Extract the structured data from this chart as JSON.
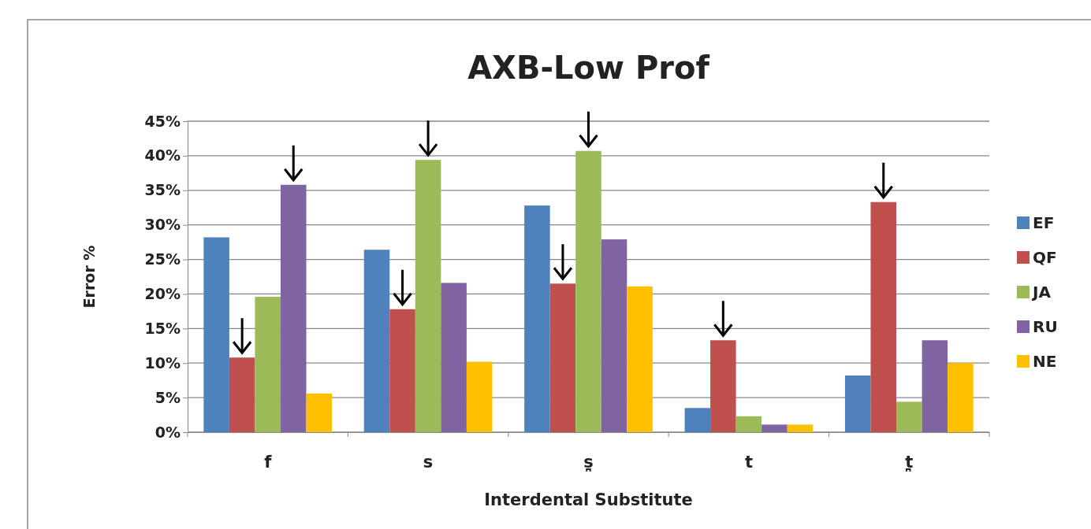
{
  "chart_data": {
    "type": "bar",
    "title": "AXB-Low Prof",
    "xlabel": "Interdental Substitute",
    "ylabel": "Error %",
    "categories": [
      "f",
      "s",
      "s̪",
      "t",
      "t̪"
    ],
    "series": [
      {
        "name": "EF",
        "color": "#4f81bd",
        "values": [
          28.2,
          26.4,
          32.8,
          3.5,
          8.2
        ]
      },
      {
        "name": "QF",
        "color": "#c0504d",
        "values": [
          10.8,
          17.8,
          21.5,
          13.3,
          33.3
        ]
      },
      {
        "name": "JA",
        "color": "#9bbb59",
        "values": [
          19.6,
          39.4,
          40.7,
          2.3,
          4.4
        ]
      },
      {
        "name": "RU",
        "color": "#8064a2",
        "values": [
          35.8,
          21.6,
          27.9,
          1.1,
          13.3
        ]
      },
      {
        "name": "NE",
        "color": "#ffc000",
        "values": [
          5.6,
          10.2,
          21.1,
          1.1,
          10.0
        ]
      }
    ],
    "ylim": [
      0,
      45
    ],
    "yticks": [
      {
        "value": 0,
        "label": "0%"
      },
      {
        "value": 5,
        "label": "5%"
      },
      {
        "value": 10,
        "label": "10%"
      },
      {
        "value": 15,
        "label": "15%"
      },
      {
        "value": 20,
        "label": "20%"
      },
      {
        "value": 25,
        "label": "25%"
      },
      {
        "value": 30,
        "label": "30%"
      },
      {
        "value": 35,
        "label": "35%"
      },
      {
        "value": 40,
        "label": "40%"
      },
      {
        "value": 45,
        "label": "45%"
      }
    ],
    "grid": "y",
    "legend": "right"
  }
}
